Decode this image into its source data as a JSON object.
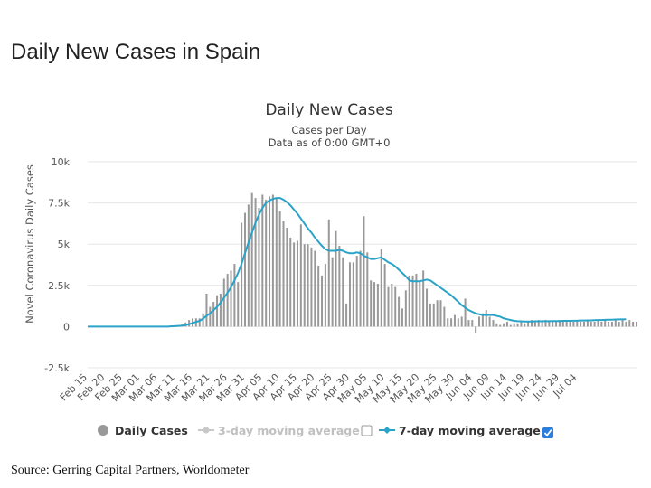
{
  "page": {
    "title": "Daily New Cases in Spain",
    "source": "Source: Gerring Capital Partners, Worldometer"
  },
  "colors": {
    "bar": "#999999",
    "line": "#2aa3c8",
    "grid": "#e6e6e6",
    "disabled": "#c0c0c0",
    "checkbox_checked": "#2b7de0"
  },
  "legend": {
    "daily_cases": "Daily Cases",
    "ma3": "3-day moving average",
    "ma7": "7-day moving average",
    "ma3_checked": false,
    "ma7_checked": true
  },
  "chart_data": {
    "type": "bar",
    "title": "Daily New Cases",
    "subtitle": "Cases per Day",
    "subtitle2": "Data as of 0:00 GMT+0",
    "xlabel": "",
    "ylabel": "Novel Coronavirus Daily Cases",
    "ylim": [
      -2500,
      10000
    ],
    "yticks": [
      -2500,
      0,
      2500,
      5000,
      7500,
      10000
    ],
    "ytick_labels": [
      "-2.5k",
      "0",
      "2.5k",
      "5k",
      "7.5k",
      "10k"
    ],
    "grid": true,
    "start_date": "Feb 15",
    "xtick_labels": [
      "Feb 15",
      "Feb 20",
      "Feb 25",
      "Mar 01",
      "Mar 06",
      "Mar 11",
      "Mar 16",
      "Mar 21",
      "Mar 26",
      "Mar 31",
      "Apr 05",
      "Apr 10",
      "Apr 15",
      "Apr 20",
      "Apr 25",
      "Apr 30",
      "May 05",
      "May 10",
      "May 15",
      "May 20",
      "May 25",
      "May 30",
      "Jun 04",
      "Jun 09",
      "Jun 14",
      "Jun 19",
      "Jun 24",
      "Jun 29",
      "Jul 04"
    ],
    "series": [
      {
        "name": "Daily Cases",
        "type": "bar",
        "values": [
          0,
          0,
          0,
          0,
          0,
          0,
          0,
          0,
          0,
          0,
          0,
          0,
          0,
          0,
          0,
          0,
          0,
          0,
          0,
          0,
          0,
          0,
          0,
          0,
          50,
          80,
          100,
          150,
          250,
          400,
          500,
          500,
          500,
          800,
          2000,
          1200,
          1500,
          1900,
          2000,
          2900,
          3200,
          3400,
          3800,
          2700,
          6300,
          6900,
          7400,
          8100,
          7800,
          7200,
          8000,
          7700,
          7900,
          8000,
          7800,
          7000,
          6400,
          6000,
          5400,
          5100,
          5200,
          6200,
          5000,
          5000,
          4800,
          4600,
          3700,
          3100,
          3800,
          6500,
          4200,
          5800,
          4900,
          4200,
          1400,
          3900,
          3900,
          4300,
          4600,
          6700,
          4500,
          2800,
          2700,
          2600,
          4700,
          3800,
          2400,
          2600,
          2400,
          1800,
          1100,
          2200,
          3100,
          3100,
          3200,
          2800,
          3400,
          2300,
          1400,
          1400,
          1600,
          1600,
          1200,
          500,
          500,
          700,
          500,
          600,
          1700,
          400,
          400,
          -370,
          600,
          800,
          1000,
          600,
          400,
          200,
          100,
          200,
          300,
          100,
          200,
          200,
          300,
          200,
          300,
          400,
          300,
          400,
          300,
          400,
          300,
          300,
          300,
          400,
          300,
          300,
          400,
          300,
          400,
          300,
          300,
          400,
          300,
          300,
          400,
          300,
          400,
          300,
          300,
          400,
          300,
          400,
          300,
          400,
          300,
          300
        ]
      },
      {
        "name": "7-day moving average",
        "type": "line",
        "values": [
          0,
          0,
          0,
          0,
          0,
          0,
          0,
          0,
          0,
          0,
          0,
          0,
          0,
          0,
          0,
          0,
          0,
          0,
          0,
          0,
          0,
          0,
          0,
          0,
          20,
          30,
          40,
          60,
          90,
          150,
          220,
          290,
          350,
          480,
          660,
          800,
          1000,
          1200,
          1450,
          1750,
          2050,
          2400,
          2800,
          3250,
          3800,
          4450,
          5100,
          5700,
          6300,
          6800,
          7200,
          7500,
          7650,
          7750,
          7800,
          7800,
          7700,
          7550,
          7350,
          7100,
          6850,
          6550,
          6250,
          5950,
          5700,
          5400,
          5150,
          4900,
          4700,
          4600,
          4600,
          4600,
          4650,
          4600,
          4500,
          4450,
          4450,
          4500,
          4450,
          4300,
          4200,
          4100,
          4100,
          4150,
          4200,
          4050,
          3900,
          3800,
          3650,
          3450,
          3250,
          3050,
          2800,
          2750,
          2750,
          2750,
          2800,
          2850,
          2800,
          2650,
          2500,
          2350,
          2200,
          2050,
          1900,
          1700,
          1500,
          1300,
          1150,
          1000,
          900,
          800,
          750,
          700,
          700,
          700,
          700,
          650,
          600,
          500,
          450,
          400,
          350,
          330,
          320,
          310,
          310,
          310,
          320,
          320,
          330,
          330,
          330,
          340,
          340,
          340,
          350,
          350,
          350,
          360,
          360,
          370,
          370,
          380,
          380,
          390,
          400,
          400,
          410,
          420,
          420,
          430,
          440,
          440,
          450
        ]
      }
    ]
  }
}
